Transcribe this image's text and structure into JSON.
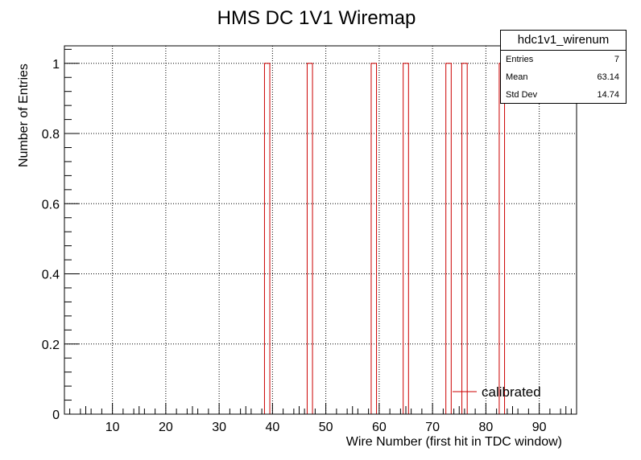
{
  "chart_data": {
    "type": "bar",
    "title": "HMS DC 1V1 Wiremap",
    "xlabel": "Wire Number (first hit in TDC window)",
    "ylabel": "Number of Entries",
    "xlim": [
      1,
      97
    ],
    "ylim": [
      0,
      1.05
    ],
    "x_ticks": [
      "10",
      "20",
      "30",
      "40",
      "50",
      "60",
      "70",
      "80",
      "90"
    ],
    "y_ticks": [
      "0",
      "0.2",
      "0.4",
      "0.6",
      "0.8",
      "1"
    ],
    "grid": true,
    "bin_width": 1,
    "series": [
      {
        "name": "calibrated",
        "color": "#cc0000",
        "bins": [
          {
            "x": 39,
            "value": 1
          },
          {
            "x": 47,
            "value": 1
          },
          {
            "x": 59,
            "value": 1
          },
          {
            "x": 65,
            "value": 1
          },
          {
            "x": 73,
            "value": 1
          },
          {
            "x": 76,
            "value": 1
          },
          {
            "x": 83,
            "value": 1
          }
        ]
      }
    ],
    "legend_position": "bottom-right"
  },
  "stats": {
    "name": "hdc1v1_wirenum",
    "entries_label": "Entries",
    "entries": "7",
    "mean_label": "Mean",
    "mean": "63.14",
    "std_label": "Std Dev",
    "std": "14.74"
  }
}
